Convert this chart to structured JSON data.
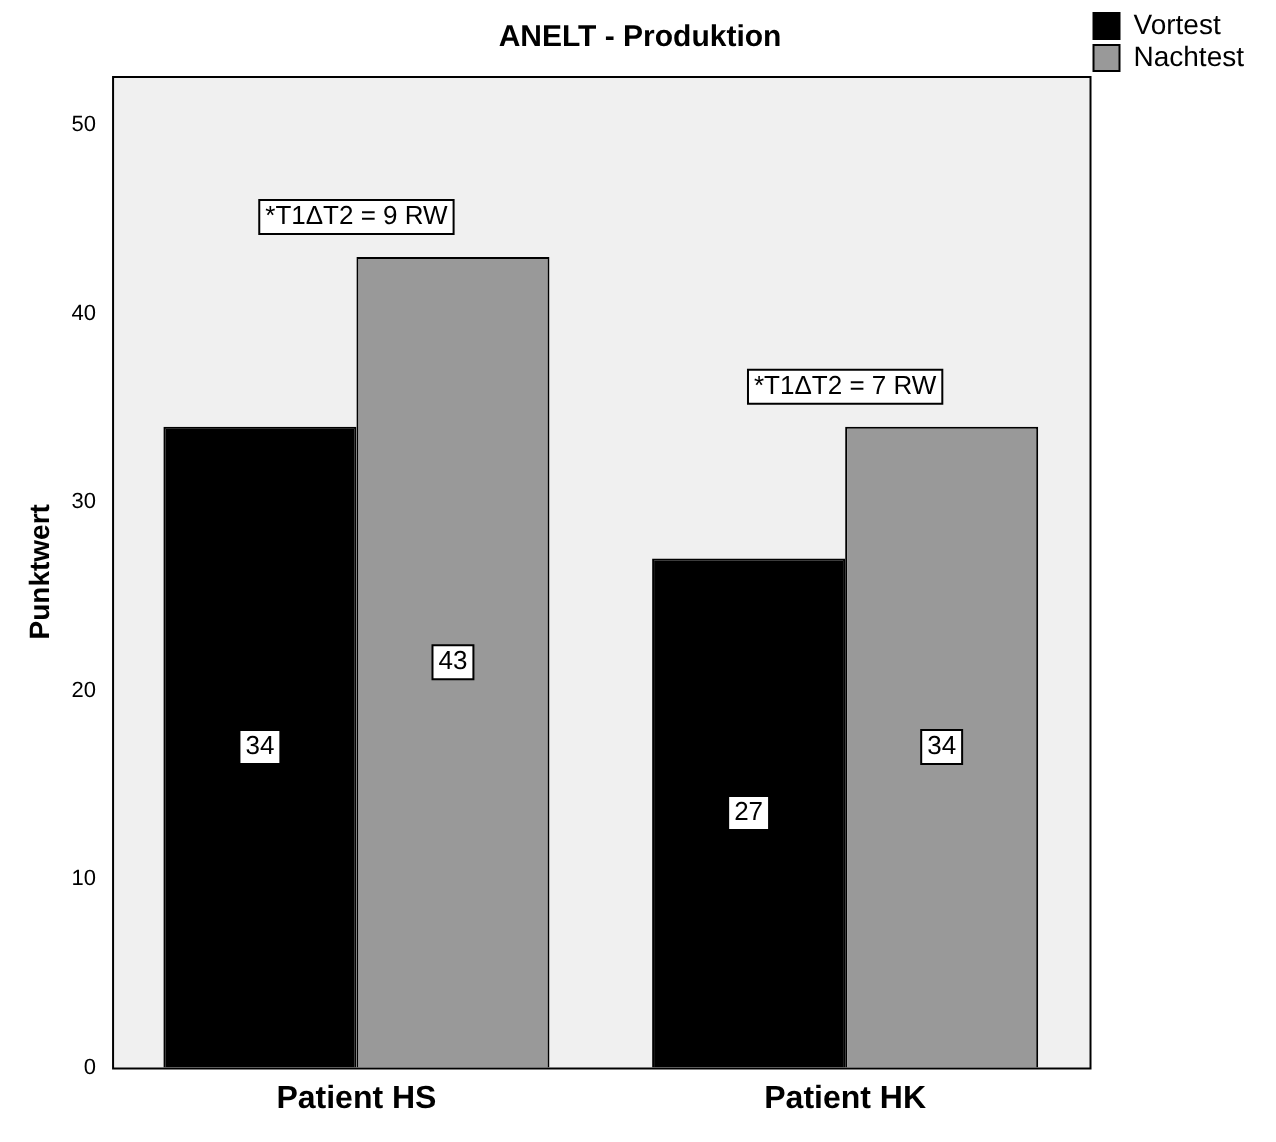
{
  "chart_data": {
    "type": "bar",
    "title": "ANELT - Produktion",
    "ylabel": "Punktwert",
    "categories": [
      "Patient HS",
      "Patient HK"
    ],
    "series": [
      {
        "name": "Vortest",
        "color": "#000000",
        "values": [
          34,
          27
        ]
      },
      {
        "name": "Nachtest",
        "color": "#999999",
        "values": [
          43,
          34
        ]
      }
    ],
    "ylim": [
      0,
      52.6
    ],
    "yticks": [
      0,
      10,
      20,
      30,
      40,
      50
    ],
    "grid": false,
    "legend": "top right",
    "data_labels": true,
    "annotations": [
      "*T1ΔT2 = 9 RW",
      "*T1ΔT2 = 7 RW"
    ]
  }
}
